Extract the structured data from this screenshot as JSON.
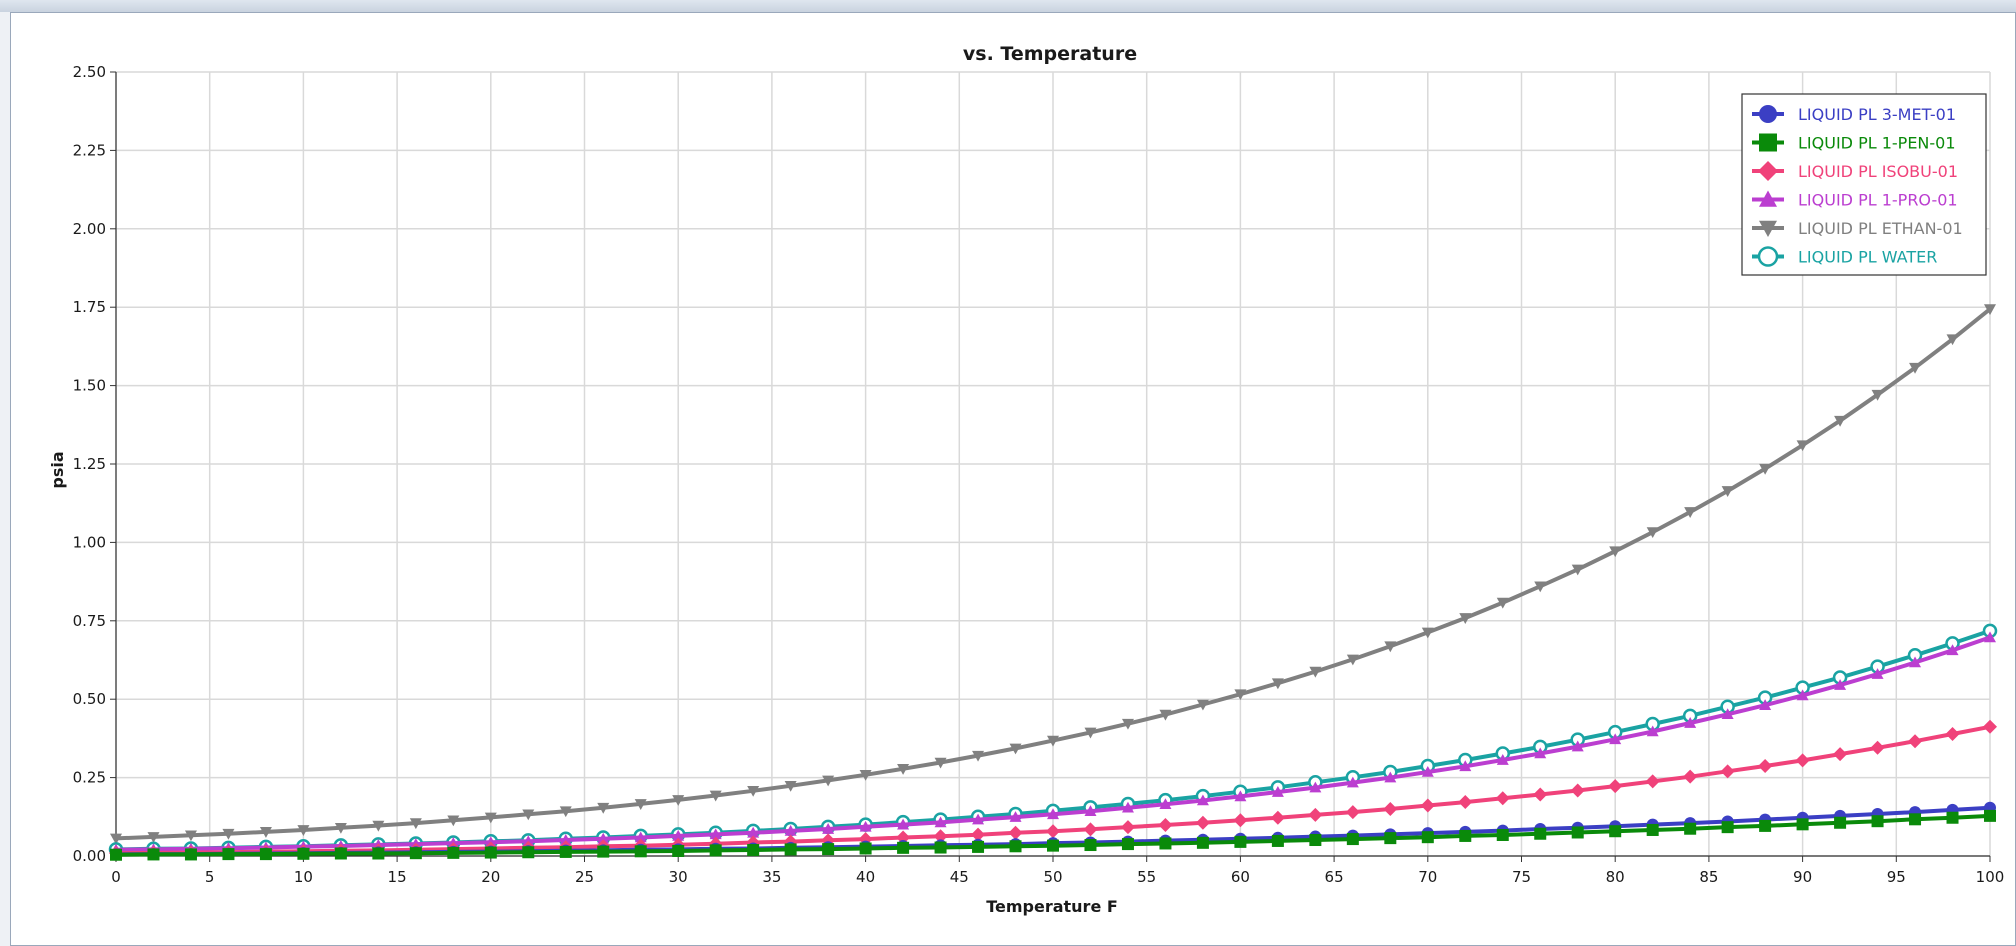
{
  "chart_data": {
    "type": "line",
    "title": "vs. Temperature",
    "xlabel": "Temperature F",
    "ylabel": "psia",
    "xlim": [
      0,
      100
    ],
    "ylim": [
      0,
      2.5
    ],
    "x_ticks": [
      "0",
      "5",
      "10",
      "15",
      "20",
      "25",
      "30",
      "35",
      "40",
      "45",
      "50",
      "55",
      "60",
      "65",
      "70",
      "75",
      "80",
      "85",
      "90",
      "95",
      "100"
    ],
    "y_ticks": [
      "0.00",
      "0.25",
      "0.50",
      "0.75",
      "1.00",
      "1.25",
      "1.50",
      "1.75",
      "2.00",
      "2.25",
      "2.50"
    ],
    "grid": true,
    "legend_position": "top-right",
    "x": [
      0,
      2,
      4,
      6,
      8,
      10,
      12,
      14,
      16,
      18,
      20,
      22,
      24,
      26,
      28,
      30,
      32,
      34,
      36,
      38,
      40,
      42,
      44,
      46,
      48,
      50,
      52,
      54,
      56,
      58,
      60,
      62,
      64,
      66,
      68,
      70,
      72,
      74,
      76,
      78,
      80,
      82,
      84,
      86,
      88,
      90,
      92,
      94,
      96,
      98,
      100
    ],
    "series": [
      {
        "name": "LIQUID PL 3-MET-01",
        "color": "#3b3fc4",
        "marker": "circle",
        "values": [
          0.005,
          0.006,
          0.006,
          0.007,
          0.008,
          0.009,
          0.01,
          0.011,
          0.012,
          0.013,
          0.014,
          0.015,
          0.017,
          0.018,
          0.02,
          0.021,
          0.023,
          0.024,
          0.026,
          0.028,
          0.03,
          0.032,
          0.034,
          0.036,
          0.038,
          0.041,
          0.043,
          0.046,
          0.049,
          0.052,
          0.055,
          0.058,
          0.062,
          0.065,
          0.069,
          0.073,
          0.077,
          0.081,
          0.086,
          0.09,
          0.095,
          0.1,
          0.105,
          0.11,
          0.116,
          0.122,
          0.128,
          0.134,
          0.14,
          0.147,
          0.154
        ]
      },
      {
        "name": "LIQUID PL 1-PEN-01",
        "color": "#0a8a0a",
        "marker": "square",
        "values": [
          0.004,
          0.005,
          0.005,
          0.006,
          0.006,
          0.007,
          0.008,
          0.008,
          0.009,
          0.01,
          0.011,
          0.012,
          0.013,
          0.014,
          0.015,
          0.016,
          0.018,
          0.019,
          0.021,
          0.022,
          0.024,
          0.026,
          0.027,
          0.029,
          0.031,
          0.033,
          0.035,
          0.038,
          0.04,
          0.042,
          0.045,
          0.048,
          0.051,
          0.054,
          0.057,
          0.06,
          0.064,
          0.067,
          0.071,
          0.075,
          0.079,
          0.083,
          0.087,
          0.092,
          0.096,
          0.101,
          0.106,
          0.111,
          0.117,
          0.122,
          0.128
        ]
      },
      {
        "name": "LIQUID PL ISOBU-01",
        "color": "#f0427a",
        "marker": "diamond",
        "values": [
          0.009,
          0.01,
          0.011,
          0.012,
          0.014,
          0.015,
          0.017,
          0.018,
          0.02,
          0.022,
          0.024,
          0.026,
          0.028,
          0.031,
          0.033,
          0.036,
          0.039,
          0.043,
          0.046,
          0.05,
          0.054,
          0.059,
          0.063,
          0.068,
          0.074,
          0.079,
          0.085,
          0.092,
          0.099,
          0.106,
          0.114,
          0.122,
          0.131,
          0.14,
          0.15,
          0.161,
          0.172,
          0.184,
          0.196,
          0.209,
          0.223,
          0.238,
          0.253,
          0.27,
          0.287,
          0.305,
          0.325,
          0.345,
          0.366,
          0.389,
          0.412
        ]
      },
      {
        "name": "LIQUID PL 1-PRO-01",
        "color": "#bb3ed0",
        "marker": "triangle-up",
        "values": [
          0.02,
          0.021,
          0.023,
          0.025,
          0.027,
          0.03,
          0.032,
          0.035,
          0.038,
          0.041,
          0.044,
          0.047,
          0.051,
          0.055,
          0.059,
          0.064,
          0.069,
          0.074,
          0.08,
          0.086,
          0.093,
          0.1,
          0.107,
          0.116,
          0.124,
          0.133,
          0.143,
          0.154,
          0.165,
          0.177,
          0.19,
          0.204,
          0.218,
          0.234,
          0.25,
          0.268,
          0.286,
          0.306,
          0.327,
          0.349,
          0.372,
          0.397,
          0.424,
          0.452,
          0.481,
          0.512,
          0.545,
          0.58,
          0.617,
          0.656,
          0.697
        ]
      },
      {
        "name": "LIQUID PL ETHAN-01",
        "color": "#808080",
        "marker": "triangle-down",
        "values": [
          0.056,
          0.061,
          0.066,
          0.071,
          0.077,
          0.083,
          0.09,
          0.097,
          0.105,
          0.114,
          0.123,
          0.133,
          0.143,
          0.154,
          0.166,
          0.179,
          0.193,
          0.208,
          0.224,
          0.241,
          0.259,
          0.278,
          0.298,
          0.32,
          0.343,
          0.368,
          0.394,
          0.422,
          0.451,
          0.483,
          0.516,
          0.551,
          0.588,
          0.627,
          0.669,
          0.713,
          0.759,
          0.808,
          0.86,
          0.914,
          0.972,
          1.033,
          1.097,
          1.164,
          1.235,
          1.31,
          1.388,
          1.471,
          1.557,
          1.648,
          1.744
        ]
      },
      {
        "name": "LIQUID PL WATER",
        "color": "#1aa3a3",
        "marker": "open-circle",
        "values": [
          0.021,
          0.023,
          0.024,
          0.026,
          0.029,
          0.031,
          0.034,
          0.037,
          0.04,
          0.043,
          0.047,
          0.05,
          0.055,
          0.059,
          0.064,
          0.069,
          0.074,
          0.08,
          0.086,
          0.093,
          0.1,
          0.108,
          0.116,
          0.125,
          0.134,
          0.144,
          0.155,
          0.166,
          0.178,
          0.191,
          0.205,
          0.219,
          0.235,
          0.251,
          0.268,
          0.287,
          0.306,
          0.327,
          0.348,
          0.371,
          0.395,
          0.421,
          0.447,
          0.476,
          0.505,
          0.537,
          0.569,
          0.604,
          0.64,
          0.678,
          0.718
        ]
      }
    ]
  }
}
